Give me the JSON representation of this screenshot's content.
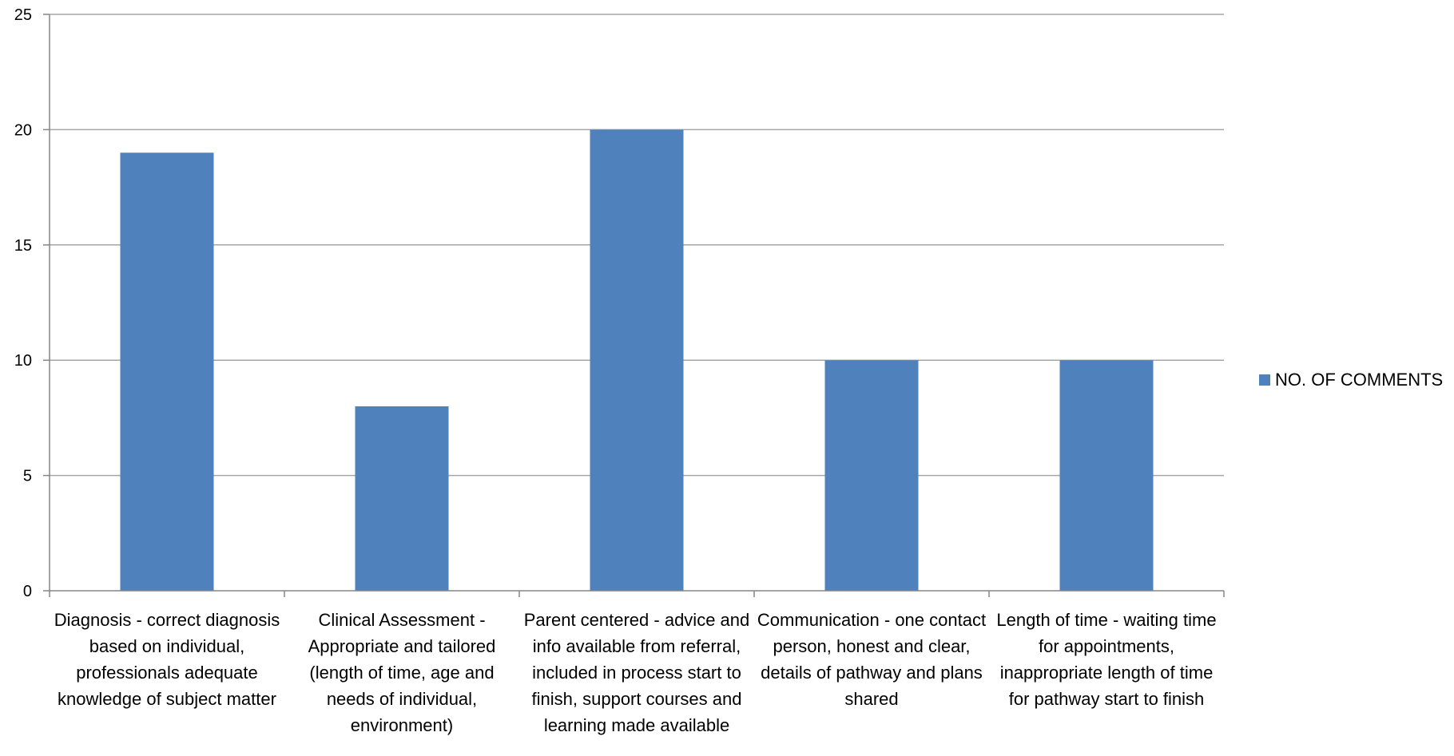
{
  "chart_data": {
    "type": "bar",
    "categories": [
      "Diagnosis - correct diagnosis based on individual, professionals adequate knowledge of subject matter",
      "Clinical Assessment - Appropriate and tailored (length of time, age and needs of individual, environment)",
      "Parent centered - advice and info available from referral, included in process start to finish, support courses and learning made available",
      "Communication - one contact person, honest and clear, details of pathway and plans shared",
      "Length of time - waiting time for appointments, inappropriate length of time for pathway start to finish"
    ],
    "series": [
      {
        "name": "NO. OF COMMENTS",
        "values": [
          19,
          8,
          20,
          10,
          10
        ]
      }
    ],
    "ylim": [
      0,
      25
    ],
    "yticks": [
      0,
      5,
      10,
      15,
      20,
      25
    ],
    "grid": true,
    "legend_position": "right",
    "bar_color": "#4F81BD",
    "gridline_color": "#A6A6A6",
    "axis_color": "#868686"
  }
}
